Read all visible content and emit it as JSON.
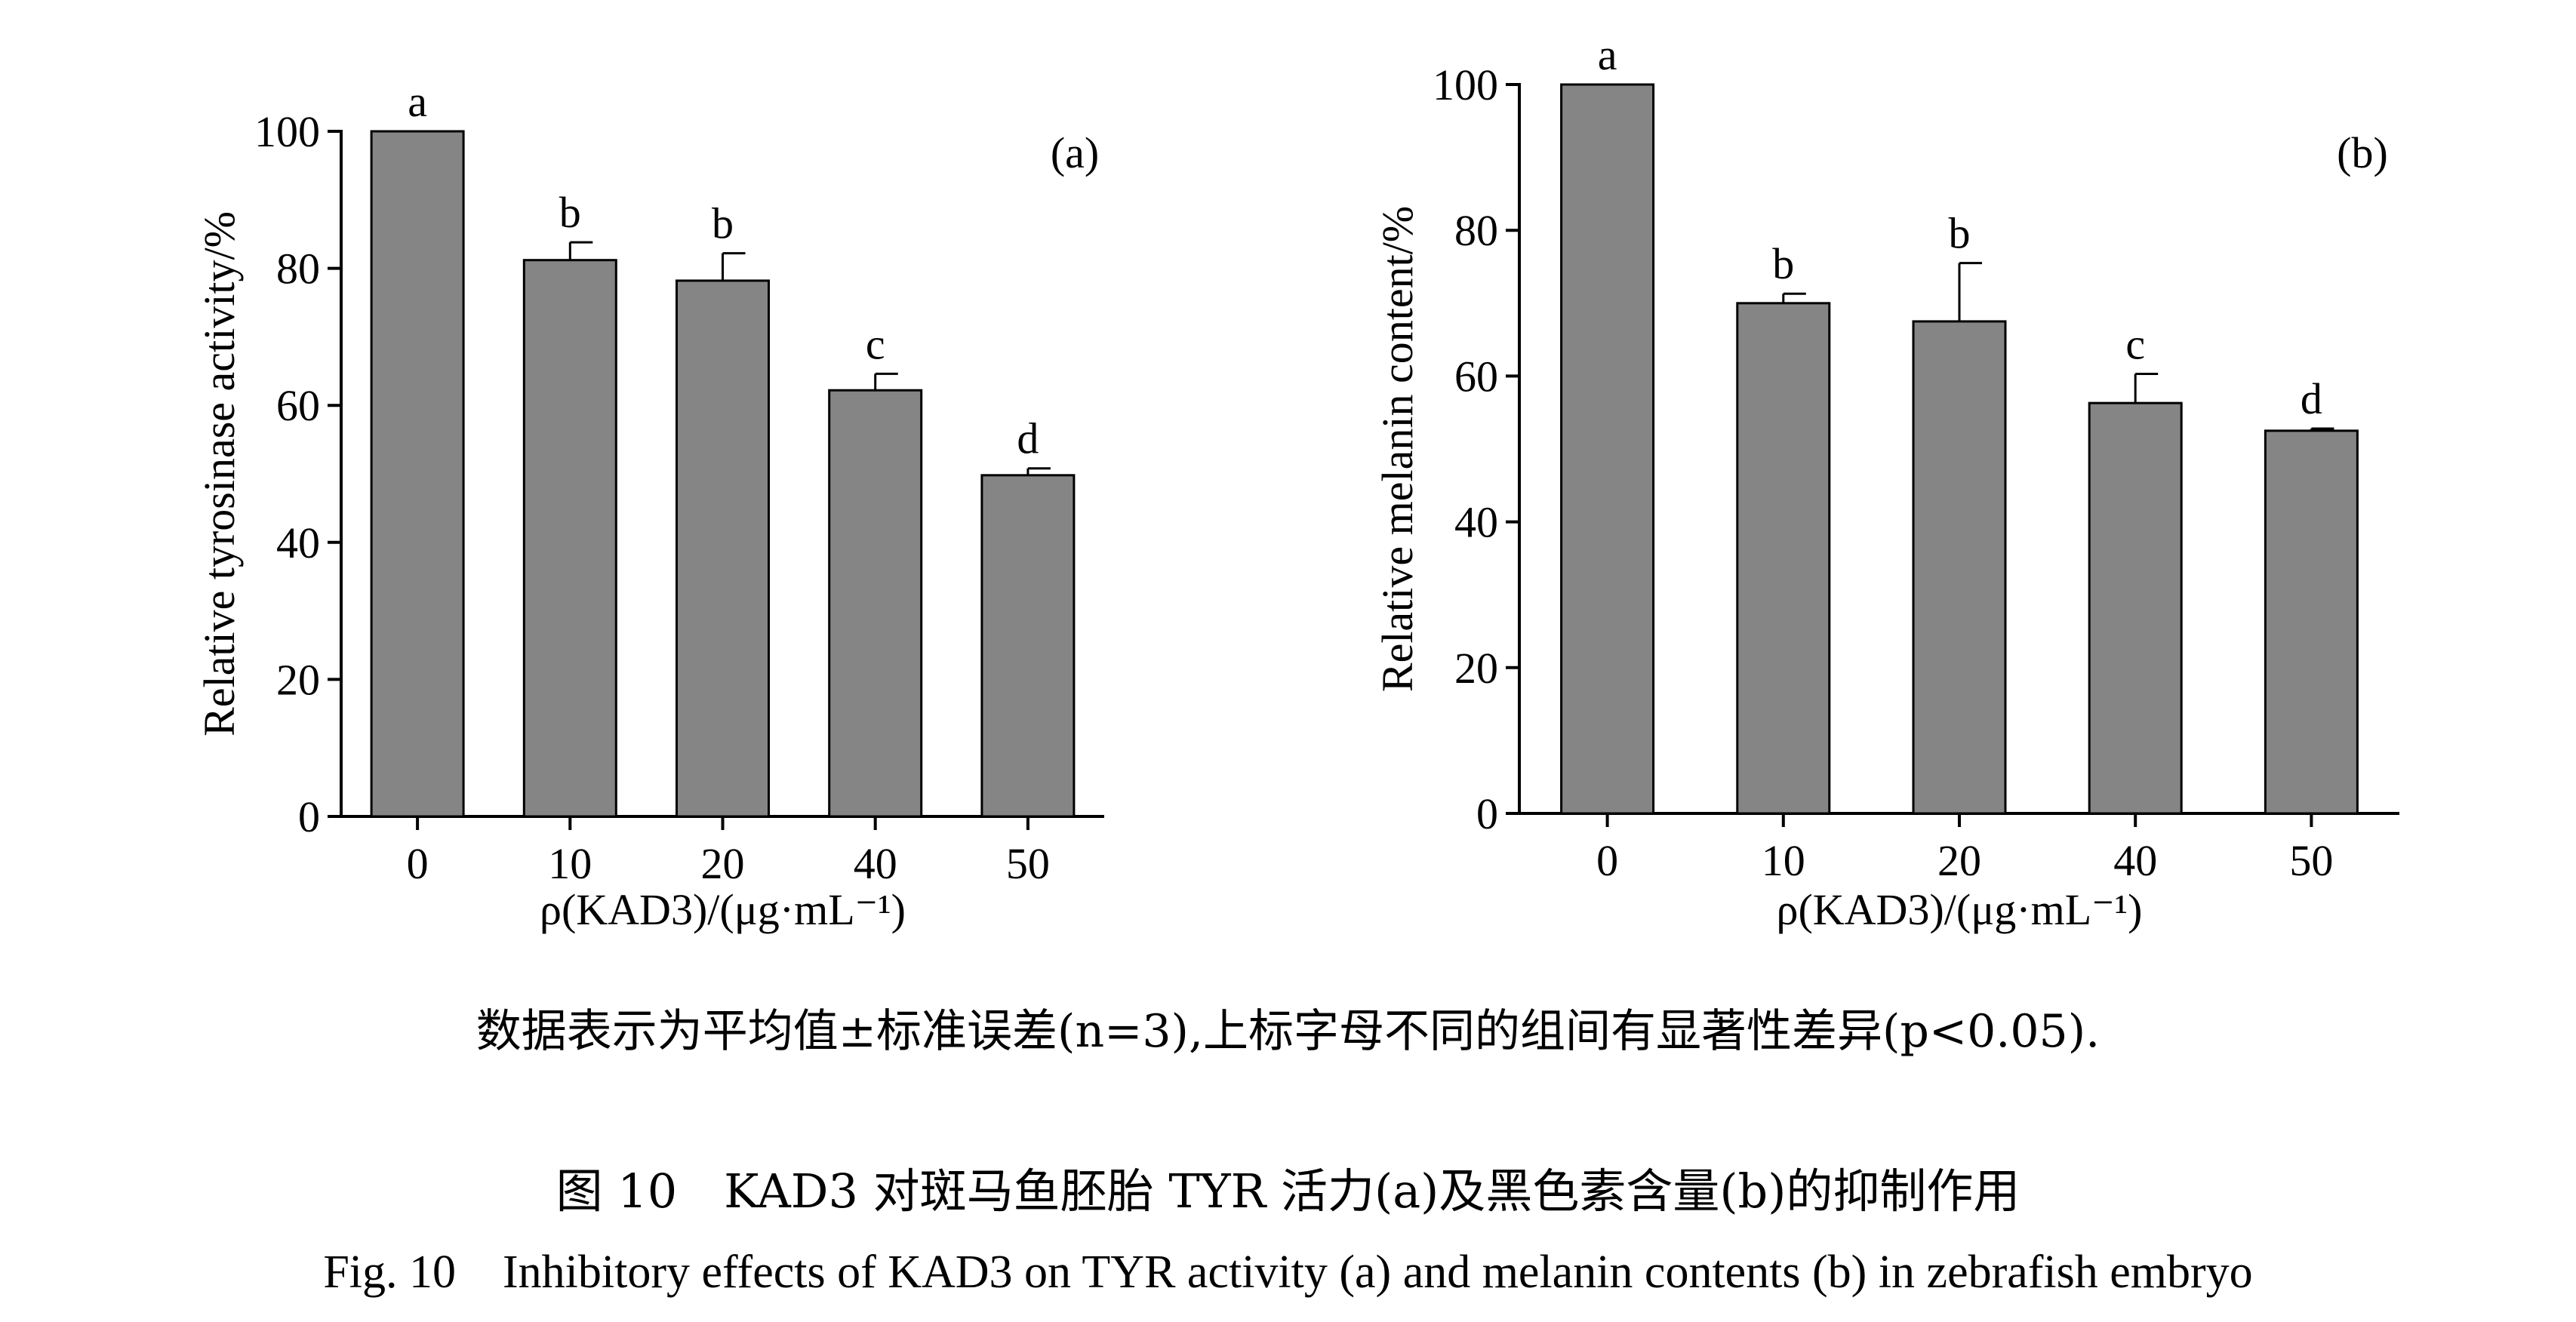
{
  "colors": {
    "bar": "#858585",
    "axis": "#000000"
  },
  "chart_data": [
    {
      "type": "bar",
      "panel_label": "(a)",
      "categories": [
        "0",
        "10",
        "20",
        "40",
        "50"
      ],
      "values": [
        100,
        81.2,
        78.2,
        62.2,
        49.8
      ],
      "error": [
        0,
        2.6,
        4.0,
        2.4,
        1.0
      ],
      "sig_letters": [
        "a",
        "b",
        "b",
        "c",
        "d"
      ],
      "ylabel": "Relative tyrosinase activity/%",
      "xlabel": "ρ(KAD3)/(μg·mL⁻¹)",
      "ylim": [
        0,
        100
      ],
      "yticks": [
        "0",
        "20",
        "40",
        "60",
        "80",
        "100"
      ],
      "grid": false
    },
    {
      "type": "bar",
      "panel_label": "(b)",
      "categories": [
        "0",
        "10",
        "20",
        "40",
        "50"
      ],
      "values": [
        100,
        70.0,
        67.5,
        56.3,
        52.5
      ],
      "error": [
        0,
        1.3,
        8.0,
        4.0,
        0.3
      ],
      "sig_letters": [
        "a",
        "b",
        "b",
        "c",
        "d"
      ],
      "ylabel": "Relative melanin content/%",
      "xlabel": "ρ(KAD3)/(μg·mL⁻¹)",
      "ylim": [
        0,
        100
      ],
      "yticks": [
        "0",
        "20",
        "40",
        "60",
        "80",
        "100"
      ],
      "grid": false
    }
  ],
  "caption": {
    "note": "数据表示为平均值±标准误差(n=3),上标字母不同的组间有显著性差异(p<0.05).",
    "title_cn": "图 10　KAD3 对斑马鱼胚胎 TYR 活力(a)及黑色素含量(b)的抑制作用",
    "title_en": "Fig. 10　Inhibitory effects of KAD3 on TYR activity (a) and melanin contents (b) in zebrafish embryo"
  }
}
